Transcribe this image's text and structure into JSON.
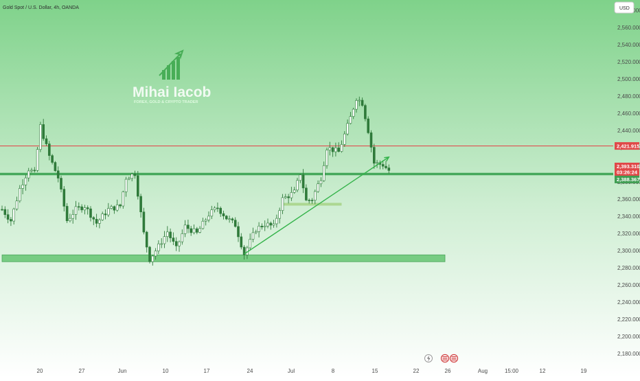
{
  "header": {
    "symbol_title": "Gold Spot / U.S. Dollar, 4h, OANDA",
    "currency_button": "USD"
  },
  "watermark": {
    "name": "Mihai Iacob",
    "tagline": "FOREX, GOLD & CRYPTO TRADER"
  },
  "price_badges": {
    "resistance": "2,421.915",
    "last_price": "2,393.310",
    "countdown": "03:26:24",
    "support": "2,388.367"
  },
  "colors": {
    "background_top": "#7fd28a",
    "background_bottom": "#ffffff",
    "candle_body": "#ffffff",
    "candle_wick": "#2f7a3a",
    "resistance_line": "#e05050",
    "support_line": "#45a85a",
    "zone_fill": "#6cc878",
    "trendline": "#34b34a"
  },
  "chart_data": {
    "type": "candlestick",
    "x_tick_labels": [
      "20",
      "27",
      "Jun",
      "10",
      "17",
      "24",
      "Jul",
      "8",
      "15",
      "22",
      "26",
      "Aug",
      "15:00",
      "12",
      "19"
    ],
    "y_ticks": [
      2180,
      2200,
      2220,
      2240,
      2260,
      2280,
      2300,
      2320,
      2340,
      2360,
      2380,
      2400,
      2420,
      2440,
      2460,
      2480,
      2500,
      2520,
      2540,
      2560,
      2580
    ],
    "ylim": [
      2168,
      2592
    ],
    "y_tick_format": "thousands_2dp",
    "resistance_level": 2421.915,
    "support_level": 2388.367,
    "last_price": 2393.31,
    "support_zone": {
      "from": 2287,
      "to": 2295,
      "start_index": 0,
      "end_index": 150
    },
    "minor_zone": {
      "value": 2354,
      "start_index": 95,
      "end_index": 115
    },
    "trendline": {
      "start": [
        82,
        2296
      ],
      "end": [
        131,
        2409
      ]
    },
    "anchors": [
      [
        0,
        2348
      ],
      [
        3,
        2335
      ],
      [
        6,
        2372
      ],
      [
        9,
        2395
      ],
      [
        11,
        2390
      ],
      [
        13,
        2445
      ],
      [
        16,
        2410
      ],
      [
        19,
        2385
      ],
      [
        22,
        2335
      ],
      [
        25,
        2348
      ],
      [
        28,
        2352
      ],
      [
        32,
        2332
      ],
      [
        36,
        2348
      ],
      [
        40,
        2352
      ],
      [
        42,
        2385
      ],
      [
        45,
        2390
      ],
      [
        48,
        2320
      ],
      [
        50,
        2290
      ],
      [
        53,
        2305
      ],
      [
        56,
        2322
      ],
      [
        59,
        2302
      ],
      [
        62,
        2328
      ],
      [
        66,
        2320
      ],
      [
        70,
        2342
      ],
      [
        73,
        2350
      ],
      [
        76,
        2338
      ],
      [
        79,
        2330
      ],
      [
        82,
        2296
      ],
      [
        86,
        2325
      ],
      [
        89,
        2331
      ],
      [
        92,
        2328
      ],
      [
        95,
        2360
      ],
      [
        99,
        2368
      ],
      [
        101,
        2390
      ],
      [
        103,
        2358
      ],
      [
        105,
        2360
      ],
      [
        108,
        2385
      ],
      [
        110,
        2420
      ],
      [
        114,
        2415
      ],
      [
        118,
        2455
      ],
      [
        120,
        2478
      ],
      [
        122,
        2472
      ],
      [
        124,
        2440
      ],
      [
        126,
        2402
      ],
      [
        129,
        2400
      ],
      [
        131,
        2393.3
      ]
    ]
  }
}
